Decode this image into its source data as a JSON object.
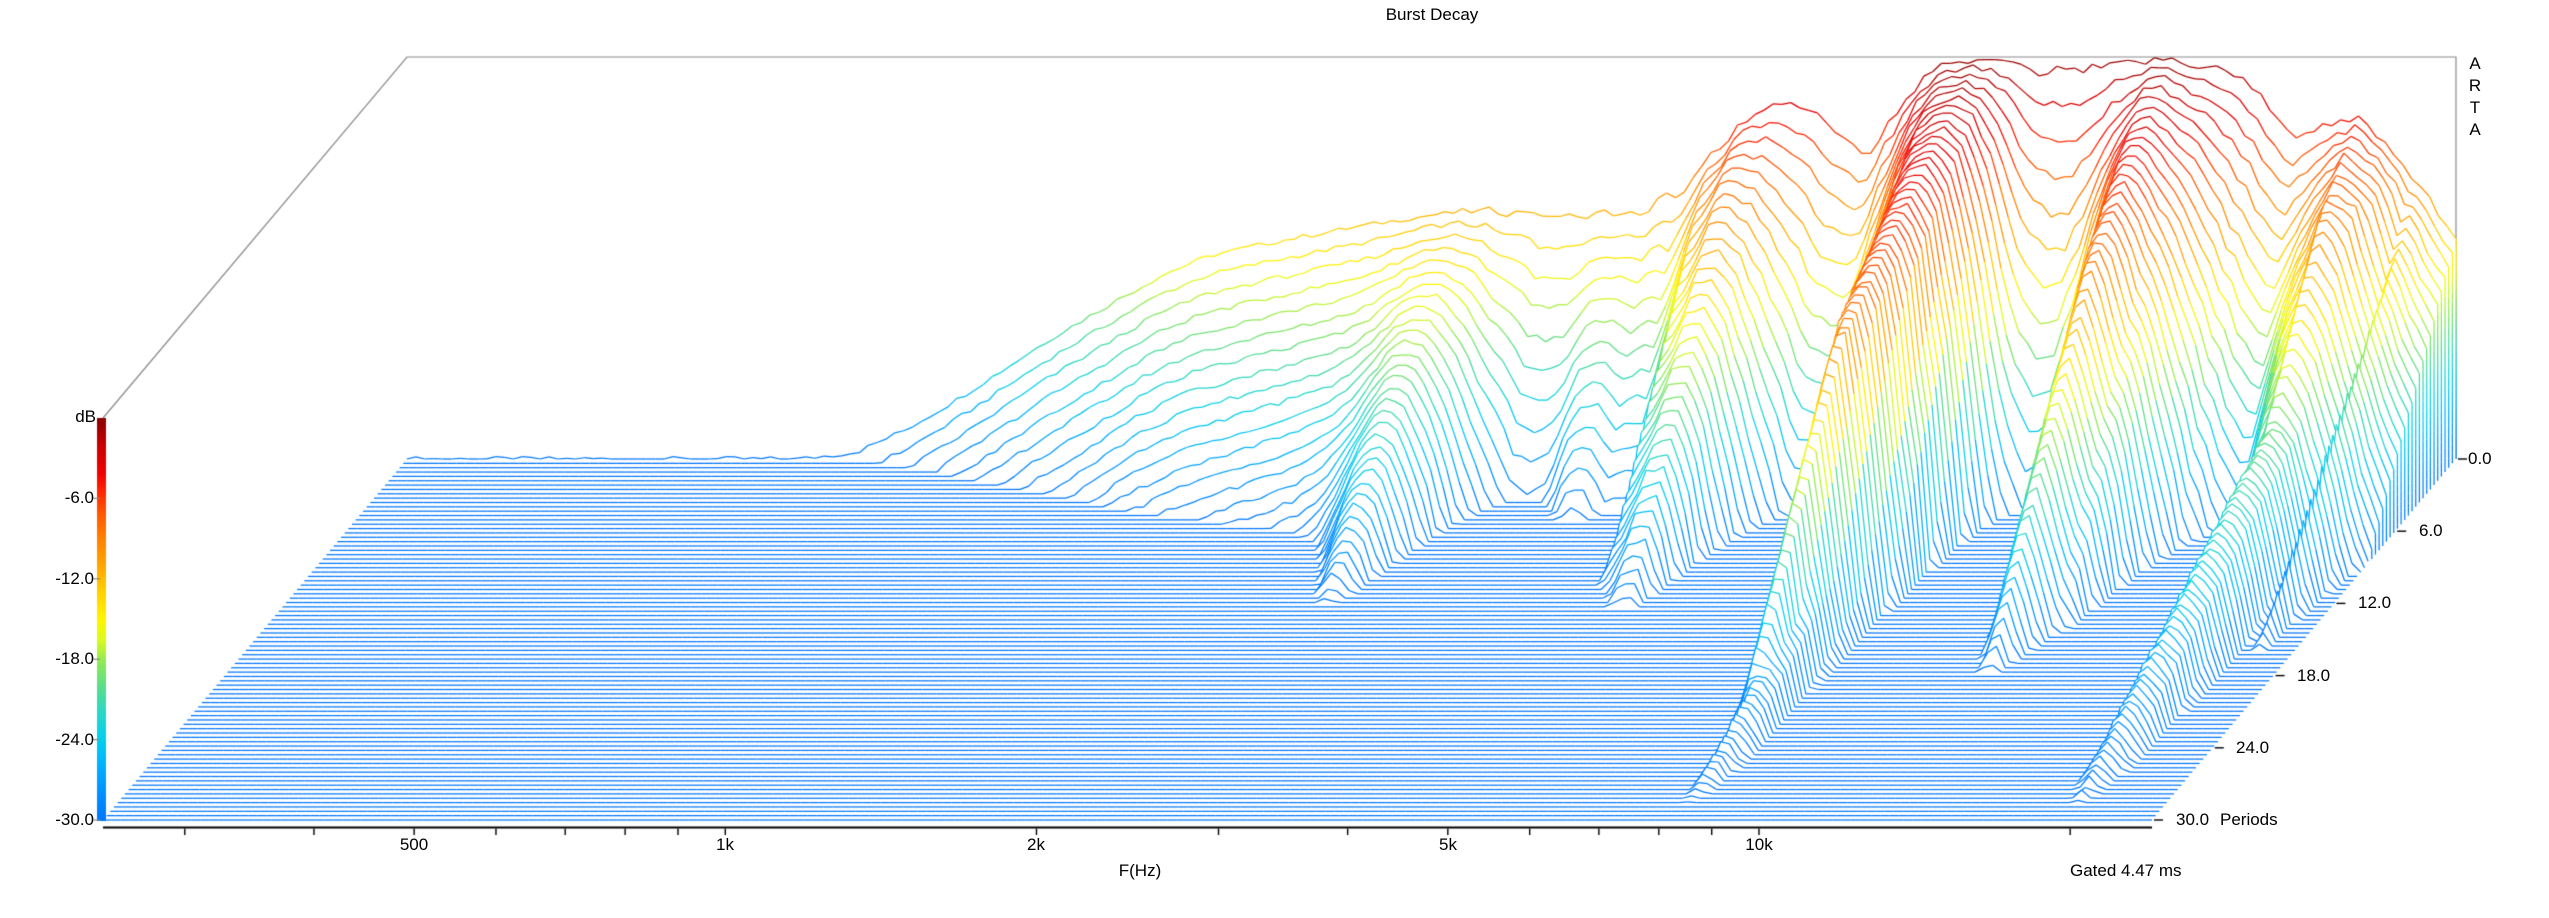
{
  "title": "Burst Decay",
  "watermark": {
    "letters": [
      "A",
      "R",
      "T",
      "A"
    ]
  },
  "footnote": "Gated 4.47 ms",
  "axes": {
    "db": {
      "label": "dB",
      "ticks": [
        "-6.0",
        "-12.0",
        "-18.0",
        "-24.0",
        "-30.0"
      ],
      "tick_values": [
        -6,
        -12,
        -18,
        -24,
        -30
      ],
      "min": -30,
      "max": 0
    },
    "freq": {
      "label": "F(Hz)",
      "ticks": [
        "500",
        "1k",
        "2k",
        "5k",
        "10k"
      ],
      "tick_hz": [
        500,
        1000,
        2000,
        5000,
        10000
      ],
      "minor_ticks_hz": [
        300,
        400,
        500,
        600,
        700,
        800,
        900,
        1000,
        2000,
        3000,
        4000,
        5000,
        6000,
        7000,
        8000,
        9000,
        10000,
        20000
      ],
      "min_hz": 250,
      "max_hz": 24000,
      "scale": "log"
    },
    "periods": {
      "label": "Periods",
      "ticks": [
        "0.0",
        "6.0",
        "12.0",
        "18.0",
        "24.0",
        "30.0"
      ],
      "tick_values": [
        0,
        6,
        12,
        18,
        24,
        30
      ],
      "min": 0,
      "max": 30
    }
  },
  "chart_data": {
    "type": "line",
    "variant": "burst-decay-3d-waterfall",
    "title": "Burst Decay",
    "xlabel": "F(Hz)",
    "ylabel": "dB",
    "zlabel": "Periods",
    "x_range_hz": [
      250,
      24000
    ],
    "y_range_db": [
      -30,
      0
    ],
    "z_range_periods": [
      0,
      30
    ],
    "gate_ms": 4.47,
    "num_period_lines": 84,
    "grid": false,
    "legend": "none",
    "magnitude_db_at_0_periods": [
      [
        250,
        -30
      ],
      [
        600,
        -30
      ],
      [
        680,
        -29.5
      ],
      [
        760,
        -27.8
      ],
      [
        850,
        -25.6
      ],
      [
        950,
        -23.2
      ],
      [
        1050,
        -21
      ],
      [
        1200,
        -18.4
      ],
      [
        1350,
        -16.2
      ],
      [
        1500,
        -14.8
      ],
      [
        1700,
        -13.9
      ],
      [
        1900,
        -13.2
      ],
      [
        2100,
        -12.6
      ],
      [
        2350,
        -12.0
      ],
      [
        2600,
        -11.6
      ],
      [
        3000,
        -11.2
      ],
      [
        3400,
        -11.0
      ],
      [
        3800,
        -10.8
      ],
      [
        4100,
        -10.2
      ],
      [
        4400,
        -8.6
      ],
      [
        4700,
        -6.6
      ],
      [
        5000,
        -4.6
      ],
      [
        5300,
        -3.4
      ],
      [
        5600,
        -3.1
      ],
      [
        5900,
        -3.9
      ],
      [
        6200,
        -5.6
      ],
      [
        6450,
        -6.8
      ],
      [
        6700,
        -5.2
      ],
      [
        7000,
        -3.0
      ],
      [
        7400,
        -1.2
      ],
      [
        7800,
        -0.4
      ],
      [
        8300,
        -0.15
      ],
      [
        8800,
        -0.4
      ],
      [
        9200,
        -0.7
      ],
      [
        9600,
        -0.9
      ],
      [
        10000,
        -0.6
      ],
      [
        10500,
        -0.35
      ],
      [
        11000,
        -0.25
      ],
      [
        11600,
        -0.15
      ],
      [
        12300,
        -0.1
      ],
      [
        13000,
        -0.2
      ],
      [
        13700,
        -0.35
      ],
      [
        14400,
        -0.6
      ],
      [
        15000,
        -1.2
      ],
      [
        15600,
        -2.2
      ],
      [
        16200,
        -3.8
      ],
      [
        16800,
        -5.5
      ],
      [
        17300,
        -5.0
      ],
      [
        17900,
        -4.7
      ],
      [
        18600,
        -4.5
      ],
      [
        19200,
        -4.3
      ],
      [
        19800,
        -5.0
      ],
      [
        20500,
        -6.5
      ],
      [
        21300,
        -8.0
      ],
      [
        22000,
        -9.5
      ],
      [
        23000,
        -11.5
      ],
      [
        24000,
        -13.5
      ]
    ],
    "decay_db_per_period": [
      [
        250,
        3.6
      ],
      [
        800,
        3.6
      ],
      [
        1200,
        3.4
      ],
      [
        1800,
        3.0
      ],
      [
        2400,
        2.7
      ],
      [
        3000,
        2.5
      ],
      [
        3600,
        2.4
      ],
      [
        4200,
        2.3
      ],
      [
        5000,
        2.2
      ],
      [
        5600,
        2.0
      ],
      [
        6300,
        2.2
      ],
      [
        7000,
        1.7
      ],
      [
        7800,
        1.1
      ],
      [
        8600,
        0.8
      ],
      [
        9300,
        1.05
      ],
      [
        10000,
        1.2
      ],
      [
        11000,
        1.1
      ],
      [
        12000,
        0.95
      ],
      [
        13000,
        1.0
      ],
      [
        14000,
        1.2
      ],
      [
        15000,
        1.5
      ],
      [
        16000,
        1.9
      ],
      [
        16800,
        2.2
      ],
      [
        17600,
        1.7
      ],
      [
        18400,
        1.5
      ],
      [
        19200,
        1.35
      ],
      [
        20000,
        1.5
      ],
      [
        21000,
        1.6
      ],
      [
        22000,
        1.8
      ],
      [
        23000,
        1.95
      ],
      [
        24000,
        2.05
      ]
    ],
    "knee_db": -9,
    "post_knee_min_decay": 2.1,
    "features": [
      {
        "hz": 2550,
        "type": "ridge",
        "delta_db": 0,
        "delta_decay": -1.2,
        "width_log10": 0.035
      },
      {
        "hz": 3300,
        "type": "notch",
        "delta_db": -0.8,
        "delta_decay": 3.2,
        "width_log10": 0.04
      },
      {
        "hz": 3750,
        "type": "ridge",
        "delta_db": 0,
        "delta_decay": -1.1,
        "width_log10": 0.03
      },
      {
        "hz": 4150,
        "type": "notch",
        "delta_db": -0.8,
        "delta_decay": 2.8,
        "width_log10": 0.03
      },
      {
        "hz": 4600,
        "type": "ridge",
        "delta_db": 0.3,
        "delta_decay": -1.2,
        "width_log10": 0.035
      },
      {
        "hz": 5900,
        "type": "notch",
        "delta_db": -0.5,
        "delta_decay": 2.0,
        "width_log10": 0.035
      },
      {
        "hz": 6450,
        "type": "notch",
        "delta_db": -0.5,
        "delta_decay": 1.8,
        "width_log10": 0.04
      },
      {
        "hz": 7850,
        "type": "ridge",
        "delta_db": 0,
        "delta_decay": -0.5,
        "width_log10": 0.05
      },
      {
        "hz": 9700,
        "type": "notch",
        "delta_db": -0.3,
        "delta_decay": 3.5,
        "width_log10": 0.028
      },
      {
        "hz": 10700,
        "type": "notch",
        "delta_db": -0.3,
        "delta_decay": 3.8,
        "width_log10": 0.03
      },
      {
        "hz": 12300,
        "type": "ridge",
        "delta_db": 0,
        "delta_decay": -0.35,
        "width_log10": 0.05
      },
      {
        "hz": 14900,
        "type": "notch",
        "delta_db": -0.5,
        "delta_decay": 1.2,
        "width_log10": 0.04
      },
      {
        "hz": 16800,
        "type": "notch",
        "delta_db": -0.6,
        "delta_decay": 1.8,
        "width_log10": 0.04
      },
      {
        "hz": 19200,
        "type": "ridge",
        "delta_db": 0,
        "delta_decay": -0.6,
        "width_log10": 0.04
      },
      {
        "hz": 21100,
        "type": "ridge",
        "delta_db": 0,
        "delta_decay": -0.5,
        "width_log10": 0.035
      }
    ],
    "ring_tails": [
      {
        "hz": 19800,
        "level_db": -14.0,
        "slope_db_per_period": 0.55,
        "width_log10": 0.062
      },
      {
        "hz": 8350,
        "level_db": -15.5,
        "slope_db_per_period": 0.5,
        "width_log10": 0.05
      }
    ],
    "texture": {
      "seed": 7,
      "amount_db": 0.5
    },
    "colormap": [
      [
        0,
        "#8B0000"
      ],
      [
        -2,
        "#C80000"
      ],
      [
        -4,
        "#EE0000"
      ],
      [
        -5.5,
        "#FF2800"
      ],
      [
        -7,
        "#FF5500"
      ],
      [
        -9,
        "#FF8200"
      ],
      [
        -11,
        "#FFA500"
      ],
      [
        -13,
        "#FFD200"
      ],
      [
        -15,
        "#FFF500"
      ],
      [
        -16.5,
        "#DCFA1E"
      ],
      [
        -18,
        "#96EB50"
      ],
      [
        -20,
        "#5ADD8C"
      ],
      [
        -22,
        "#28D7C8"
      ],
      [
        -24,
        "#00CFEF"
      ],
      [
        -26,
        "#00AFFF"
      ],
      [
        -28,
        "#0090FF"
      ],
      [
        -30,
        "#0076FC"
      ]
    ]
  }
}
